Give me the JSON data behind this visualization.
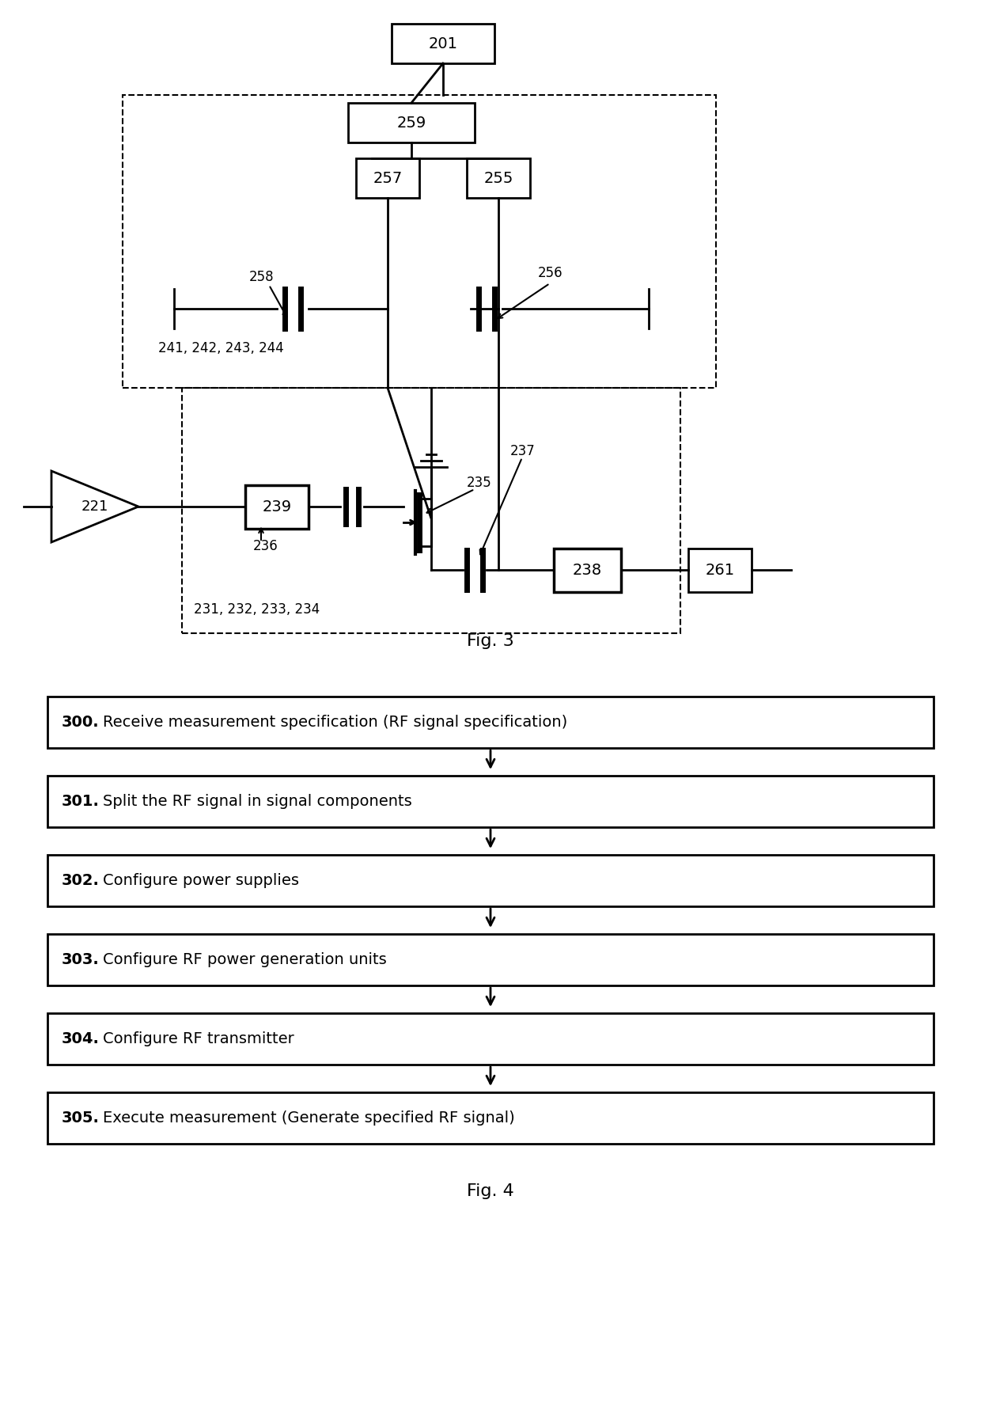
{
  "fig3_label": "Fig. 3",
  "fig4_label": "Fig. 4",
  "flowchart_steps": [
    {
      "num": "300",
      "text": "Receive measurement specification (RF signal specification)"
    },
    {
      "num": "301",
      "text": "Split the RF signal in signal components"
    },
    {
      "num": "302",
      "text": "Configure power supplies"
    },
    {
      "num": "303",
      "text": "Configure RF power generation units"
    },
    {
      "num": "304",
      "text": "Configure RF transmitter"
    },
    {
      "num": "305",
      "text": "Execute measurement (Generate specified RF signal)"
    }
  ],
  "bg_color": "#ffffff",
  "box_color": "#000000",
  "text_color": "#000000",
  "dashed_color": "#000000"
}
